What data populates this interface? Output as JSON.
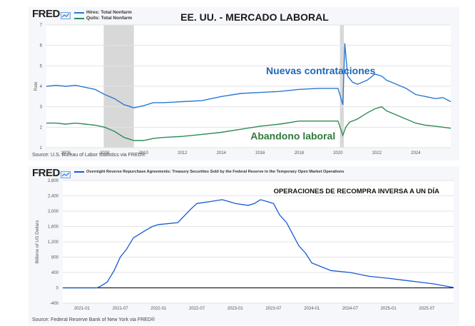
{
  "colors": {
    "hires": "#2a78d2",
    "quits": "#2e8b57",
    "rrp": "#1559d4",
    "annot_blue": "#1f67b5",
    "annot_green": "#2f7a3c",
    "recession": "#d8d8d8"
  },
  "top": {
    "logo": "FRED",
    "title": "EE. UU. - MERCADO LABORAL",
    "legend": [
      "Hires: Total Nonfarm",
      "Quits: Total Nonfarm"
    ],
    "source": "Source: U.S. Bureau of Labor Statistics via FRED®",
    "annotation_hires": "Nuevas contrataciones",
    "annotation_quits": "Abandono laboral"
  },
  "bottom": {
    "logo": "FRED",
    "legend": "Overnight Reverse Repurchase Agreements: Treasury Securities Sold by the Federal Reserve in the Temporary Open Market Operations",
    "title": "OPERACIONES DE RECOMPRA INVERSA A UN DÍA",
    "source": "Source: Federal Reserve Bank of New York via FRED®"
  },
  "chart_data": [
    {
      "type": "line",
      "title": "EE. UU. - MERCADO LABORAL",
      "ylabel": "Rate",
      "xlim": [
        2005.0,
        2025.8
      ],
      "ylim": [
        1,
        7
      ],
      "yticks": [
        1,
        2,
        3,
        4,
        5,
        6,
        7
      ],
      "xticks": [
        2006,
        2008,
        2010,
        2012,
        2014,
        2016,
        2018,
        2020,
        2022,
        2024
      ],
      "recessions": [
        [
          2007.95,
          2009.5
        ],
        [
          2020.1,
          2020.3
        ]
      ],
      "series": [
        {
          "name": "Hires: Total Nonfarm",
          "x": [
            2005.0,
            2005.5,
            2006.0,
            2006.5,
            2007.0,
            2007.5,
            2008.0,
            2008.5,
            2009.0,
            2009.5,
            2010.0,
            2010.5,
            2011.0,
            2012.0,
            2013.0,
            2014.0,
            2015.0,
            2016.0,
            2017.0,
            2018.0,
            2019.0,
            2020.0,
            2020.25,
            2020.35,
            2020.5,
            2020.75,
            2021.0,
            2021.5,
            2021.9,
            2022.25,
            2022.5,
            2023.0,
            2023.5,
            2024.0,
            2024.5,
            2025.0,
            2025.4,
            2025.8
          ],
          "y": [
            4.0,
            4.05,
            4.0,
            4.05,
            3.95,
            3.85,
            3.6,
            3.4,
            3.1,
            2.95,
            3.05,
            3.2,
            3.2,
            3.25,
            3.3,
            3.5,
            3.65,
            3.7,
            3.75,
            3.85,
            3.9,
            3.9,
            3.1,
            6.1,
            4.5,
            4.2,
            4.1,
            4.3,
            4.6,
            4.5,
            4.3,
            4.1,
            3.9,
            3.6,
            3.5,
            3.4,
            3.45,
            3.25
          ]
        },
        {
          "name": "Quits: Total Nonfarm",
          "x": [
            2005.0,
            2005.5,
            2006.0,
            2006.5,
            2007.0,
            2007.5,
            2008.0,
            2008.5,
            2009.0,
            2009.5,
            2010.0,
            2010.5,
            2011.0,
            2012.0,
            2013.0,
            2014.0,
            2015.0,
            2016.0,
            2017.0,
            2018.0,
            2019.0,
            2020.0,
            2020.25,
            2020.4,
            2020.6,
            2021.0,
            2021.5,
            2021.9,
            2022.25,
            2022.5,
            2023.0,
            2023.5,
            2024.0,
            2024.5,
            2025.0,
            2025.4,
            2025.8
          ],
          "y": [
            2.2,
            2.2,
            2.15,
            2.2,
            2.15,
            2.1,
            2.0,
            1.8,
            1.5,
            1.35,
            1.35,
            1.45,
            1.5,
            1.55,
            1.65,
            1.75,
            1.9,
            2.05,
            2.15,
            2.3,
            2.3,
            2.3,
            1.6,
            2.0,
            2.25,
            2.4,
            2.7,
            2.9,
            3.0,
            2.8,
            2.6,
            2.4,
            2.2,
            2.1,
            2.05,
            2.0,
            1.95
          ]
        }
      ]
    },
    {
      "type": "line",
      "title": "OPERACIONES DE RECOMPRA INVERSA A UN DÍA",
      "ylabel": "Billions of US Dollars",
      "xlim": [
        2020.75,
        2025.85
      ],
      "ylim": [
        -400,
        2800
      ],
      "yticks": [
        -400,
        0,
        400,
        800,
        1200,
        1600,
        2000,
        2400,
        2800
      ],
      "xticks": [
        "2021-01",
        "2021-07",
        "2022-01",
        "2022-07",
        "2023-01",
        "2023-07",
        "2024-01",
        "2024-07",
        "2025-01",
        "2025-07"
      ],
      "xtick_values": [
        2021.0,
        2021.5,
        2022.0,
        2022.5,
        2023.0,
        2023.5,
        2024.0,
        2024.5,
        2025.0,
        2025.5
      ],
      "series": [
        {
          "name": "Overnight Reverse Repurchase Agreements",
          "x": [
            2020.75,
            2021.0,
            2021.2,
            2021.25,
            2021.33,
            2021.42,
            2021.5,
            2021.58,
            2021.67,
            2021.75,
            2021.83,
            2021.92,
            2022.0,
            2022.25,
            2022.42,
            2022.5,
            2022.67,
            2022.83,
            2022.92,
            2023.0,
            2023.17,
            2023.25,
            2023.33,
            2023.42,
            2023.5,
            2023.58,
            2023.67,
            2023.75,
            2023.83,
            2023.92,
            2024.0,
            2024.25,
            2024.5,
            2024.75,
            2025.0,
            2025.2,
            2025.4,
            2025.6,
            2025.85
          ],
          "y": [
            0,
            0,
            0,
            50,
            150,
            450,
            800,
            1000,
            1300,
            1400,
            1500,
            1600,
            1650,
            1700,
            2050,
            2200,
            2250,
            2300,
            2250,
            2200,
            2150,
            2200,
            2300,
            2250,
            2200,
            1900,
            1700,
            1400,
            1100,
            900,
            650,
            450,
            400,
            300,
            250,
            200,
            150,
            100,
            10
          ]
        }
      ]
    }
  ]
}
